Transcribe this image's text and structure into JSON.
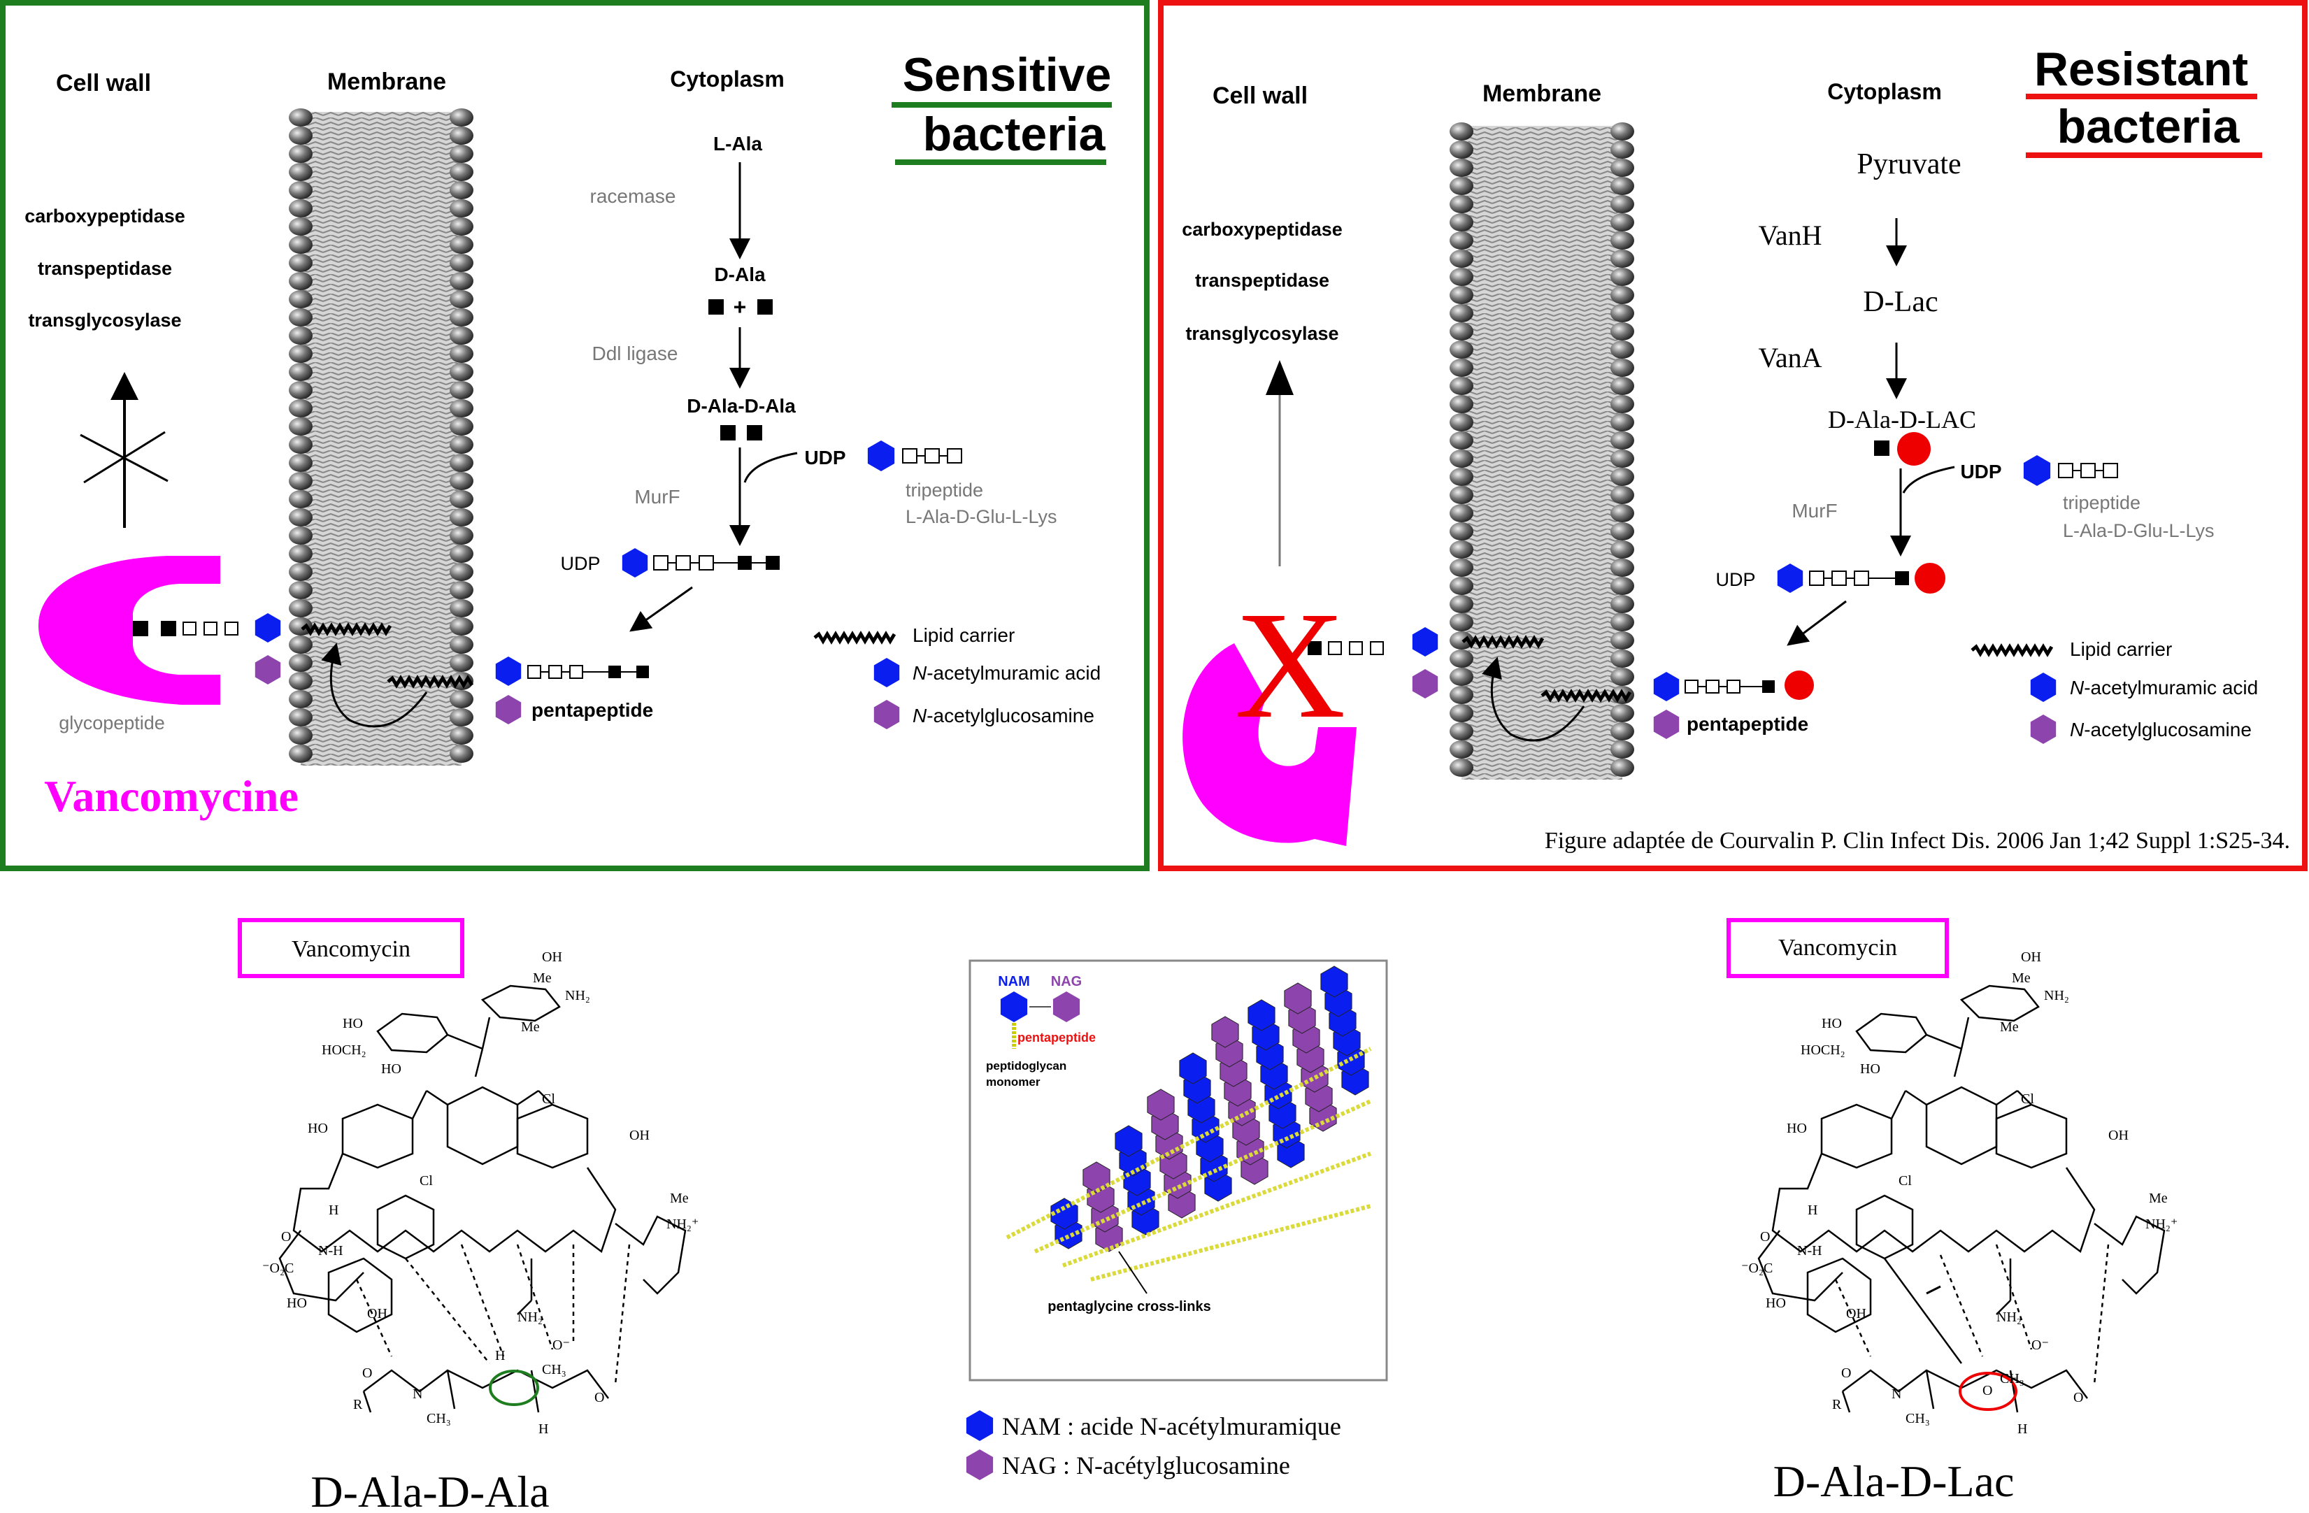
{
  "colors": {
    "sensitive_frame": "#1e7d1e",
    "resistant_frame": "#ee1111",
    "vancomycin": "#ff00ff",
    "nam_blue": "#0a1ef0",
    "nag_purple": "#8e44ad",
    "lac_red": "#ee0000",
    "grey_text": "#777777"
  },
  "sensitive": {
    "title_line1": "Sensitive",
    "title_line2": "bacteria",
    "headers": {
      "cell_wall": "Cell wall",
      "membrane": "Membrane",
      "cytoplasm": "Cytoplasm"
    },
    "enzymes": [
      "carboxypeptidase",
      "transpeptidase",
      "transglycosylase"
    ],
    "pathway": {
      "l_ala": "L-Ala",
      "racemase": "racemase",
      "d_ala": "D-Ala",
      "plus": "+",
      "ddl": "Ddl ligase",
      "d_ala_d_ala": "D-Ala-D-Ala",
      "udp": "UDP",
      "tripeptide": "tripeptide",
      "tripeptide_seq": "L-Ala-D-Glu-L-Lys",
      "murf": "MurF",
      "udp2": "UDP",
      "pentapeptide": "pentapeptide"
    },
    "glycopeptide": "glycopeptide",
    "vancomycine": "Vancomycine"
  },
  "resistant": {
    "title_line1": "Resistant",
    "title_line2": "bacteria",
    "headers": {
      "cell_wall": "Cell wall",
      "membrane": "Membrane",
      "cytoplasm": "Cytoplasm"
    },
    "enzymes": [
      "carboxypeptidase",
      "transpeptidase",
      "transglycosylase"
    ],
    "pathway": {
      "pyruvate": "Pyruvate",
      "vanh": "VanH",
      "d_lac": "D-Lac",
      "vana": "VanA",
      "d_ala_d_lac": "D-Ala-D-LAC",
      "udp": "UDP",
      "tripeptide": "tripeptide",
      "tripeptide_seq": "L-Ala-D-Glu-L-Lys",
      "murf": "MurF",
      "udp2": "UDP",
      "pentapeptide": "pentapeptide"
    },
    "block": "X",
    "citation": "Figure adaptée de Courvalin P. Clin Infect Dis. 2006 Jan 1;42 Suppl 1:S25-34."
  },
  "legend": {
    "lipid_carrier": "Lipid carrier",
    "nam_prefix": "N",
    "nam_rest": "-acetylmuramic acid",
    "nag_prefix": "N",
    "nag_rest": "-acetylglucosamine"
  },
  "structures": {
    "vancomycin_label": "Vancomycin",
    "left_caption": "D-Ala-D-Ala",
    "right_caption": "D-Ala-D-Lac",
    "atoms": {
      "ho": "HO",
      "hoch2": "HOCH₂",
      "oh": "OH",
      "me": "Me",
      "nh2": "NH₂",
      "cl": "Cl",
      "o": "O",
      "h": "H",
      "n": "N",
      "nh": "N",
      "nhh": "N-H",
      "co2": "⁻O₂C",
      "nh2plus": "NH₂⁺",
      "r": "R",
      "ch3": "CH₃",
      "ominus": "O⁻"
    }
  },
  "peptidoglycan": {
    "nam": "NAM",
    "nag": "NAG",
    "pentapeptide": "pentapeptide",
    "monomer_line1": "peptidoglycan",
    "monomer_line2": "monomer",
    "crosslinks": "pentaglycine cross-links"
  },
  "bottom_legend": {
    "nam": "NAM : acide N-acétylmuramique",
    "nag": "NAG : N-acétylglucosamine"
  }
}
